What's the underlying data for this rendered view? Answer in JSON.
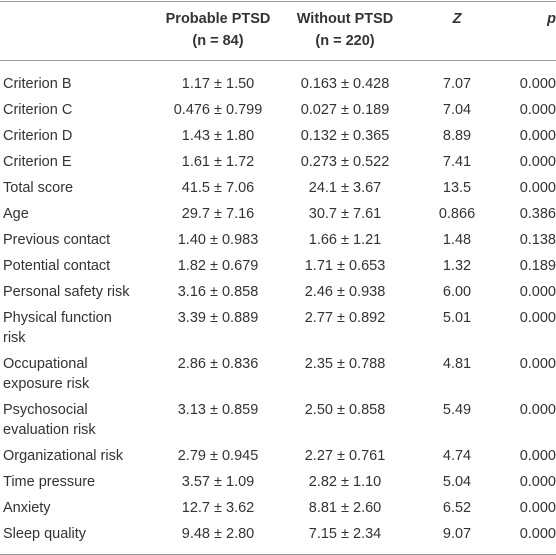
{
  "table": {
    "header": [
      "",
      "Probable PTSD",
      "Without PTSD",
      "Z",
      "p"
    ],
    "subheader": [
      "",
      "(n = 84)",
      "(n = 220)",
      "",
      ""
    ],
    "rows": [
      [
        "Criterion B",
        "1.17 ± 1.50",
        "0.163 ± 0.428",
        "7.07",
        "0.000"
      ],
      [
        "Criterion C",
        "0.476 ± 0.799",
        "0.027 ± 0.189",
        "7.04",
        "0.000"
      ],
      [
        "Criterion D",
        "1.43 ± 1.80",
        "0.132 ± 0.365",
        "8.89",
        "0.000"
      ],
      [
        "Criterion E",
        "1.61 ± 1.72",
        "0.273 ± 0.522",
        "7.41",
        "0.000"
      ],
      [
        "Total score",
        "41.5 ± 7.06",
        "24.1 ± 3.67",
        "13.5",
        "0.000"
      ],
      [
        "Age",
        "29.7 ± 7.16",
        "30.7 ± 7.61",
        "0.866",
        "0.386"
      ],
      [
        "Previous contact",
        "1.40 ± 0.983",
        "1.66 ± 1.21",
        "1.48",
        "0.138"
      ],
      [
        "Potential contact",
        "1.82 ± 0.679",
        "1.71 ± 0.653",
        "1.32",
        "0.189"
      ],
      [
        "Personal safety risk",
        "3.16 ± 0.858",
        "2.46 ± 0.938",
        "6.00",
        "0.000"
      ],
      [
        "Physical function risk",
        "3.39 ± 0.889",
        "2.77 ± 0.892",
        "5.01",
        "0.000"
      ],
      [
        "Occupational exposure risk",
        "2.86 ± 0.836",
        "2.35 ± 0.788",
        "4.81",
        "0.000"
      ],
      [
        "Psychosocial evaluation risk",
        "3.13 ± 0.859",
        "2.50 ± 0.858",
        "5.49",
        "0.000"
      ],
      [
        "Organizational risk",
        "2.79 ± 0.945",
        "2.27 ± 0.761",
        "4.74",
        "0.000"
      ],
      [
        "Time pressure",
        "3.57 ± 1.09",
        "2.82 ± 1.10",
        "5.04",
        "0.000"
      ],
      [
        "Anxiety",
        "12.7 ± 3.62",
        "8.81 ± 2.60",
        "6.52",
        "0.000"
      ],
      [
        "Sleep quality",
        "9.48 ± 2.80",
        "7.15 ± 2.34",
        "9.07",
        "0.000"
      ]
    ]
  }
}
